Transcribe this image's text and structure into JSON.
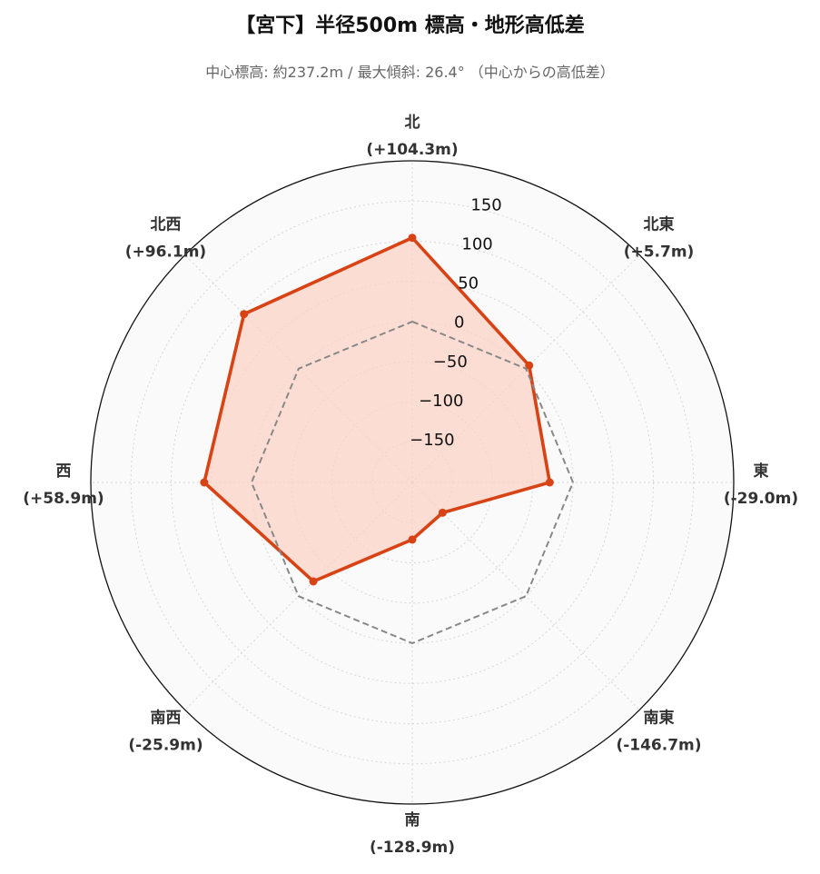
{
  "chart_data": {
    "type": "radar",
    "title": "【宮下】半径500m 標高・地形高低差",
    "subtitle": "中心標高: 約237.2m / 最大傾斜: 26.4° （中心からの高低差）",
    "categories": [
      "北",
      "北東",
      "東",
      "南東",
      "南",
      "南西",
      "西",
      "北西"
    ],
    "category_values": [
      "(+104.3m)",
      "(+5.7m)",
      "(-29.0m)",
      "(-146.7m)",
      "(-128.9m)",
      "(-25.9m)",
      "(+58.9m)",
      "(+96.1m)"
    ],
    "series": [
      {
        "values": [
          104.3,
          5.7,
          -29.0,
          -146.7,
          -128.9,
          -25.9,
          58.9,
          96.1
        ],
        "color": "#d84315",
        "fill_color": "#fbd3c7",
        "style": "solid-filled"
      },
      {
        "values": [
          0,
          0,
          0,
          0,
          0,
          0,
          0,
          0
        ],
        "color": "#888888",
        "style": "dashed"
      }
    ],
    "radial_ticks": [
      "150",
      "100",
      "50",
      "0",
      "−50",
      "−100",
      "−150"
    ],
    "rlim": [
      -200,
      200
    ],
    "grid": true
  }
}
